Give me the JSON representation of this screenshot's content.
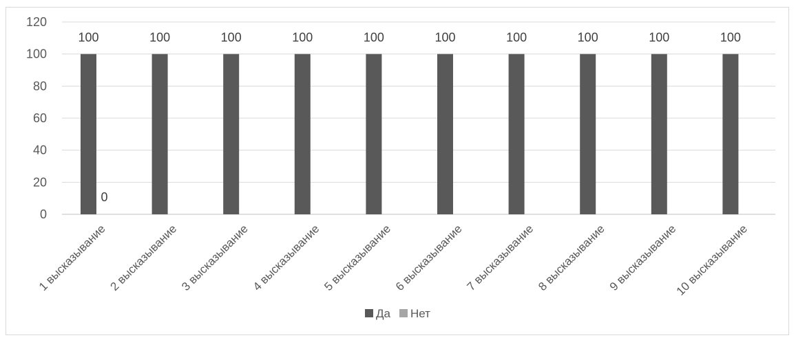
{
  "chart_data": {
    "type": "bar",
    "title": "",
    "xlabel": "",
    "ylabel": "",
    "ylim": [
      0,
      120
    ],
    "yticks": [
      0,
      20,
      40,
      60,
      80,
      100,
      120
    ],
    "grid": true,
    "legend_position": "bottom",
    "categories": [
      "1 высказывание",
      "2 высказывание",
      "3 высказывание",
      "4 высказывание",
      "5 высказывание",
      "6 высказывание",
      "7 высказывание",
      "8 высказывание",
      "9 высказывание",
      "10 высказывание"
    ],
    "series": [
      {
        "name": "Да",
        "color": "#595959",
        "values": [
          100,
          100,
          100,
          100,
          100,
          100,
          100,
          100,
          100,
          100
        ],
        "data_labels": [
          "100",
          "100",
          "100",
          "100",
          "100",
          "100",
          "100",
          "100",
          "100",
          "100"
        ]
      },
      {
        "name": "Нет",
        "color": "#a6a6a6",
        "values": [
          0,
          null,
          null,
          null,
          null,
          null,
          null,
          null,
          null,
          null
        ],
        "data_labels": [
          "0",
          "",
          "",
          "",
          "",
          "",
          "",
          "",
          "",
          ""
        ]
      }
    ]
  }
}
